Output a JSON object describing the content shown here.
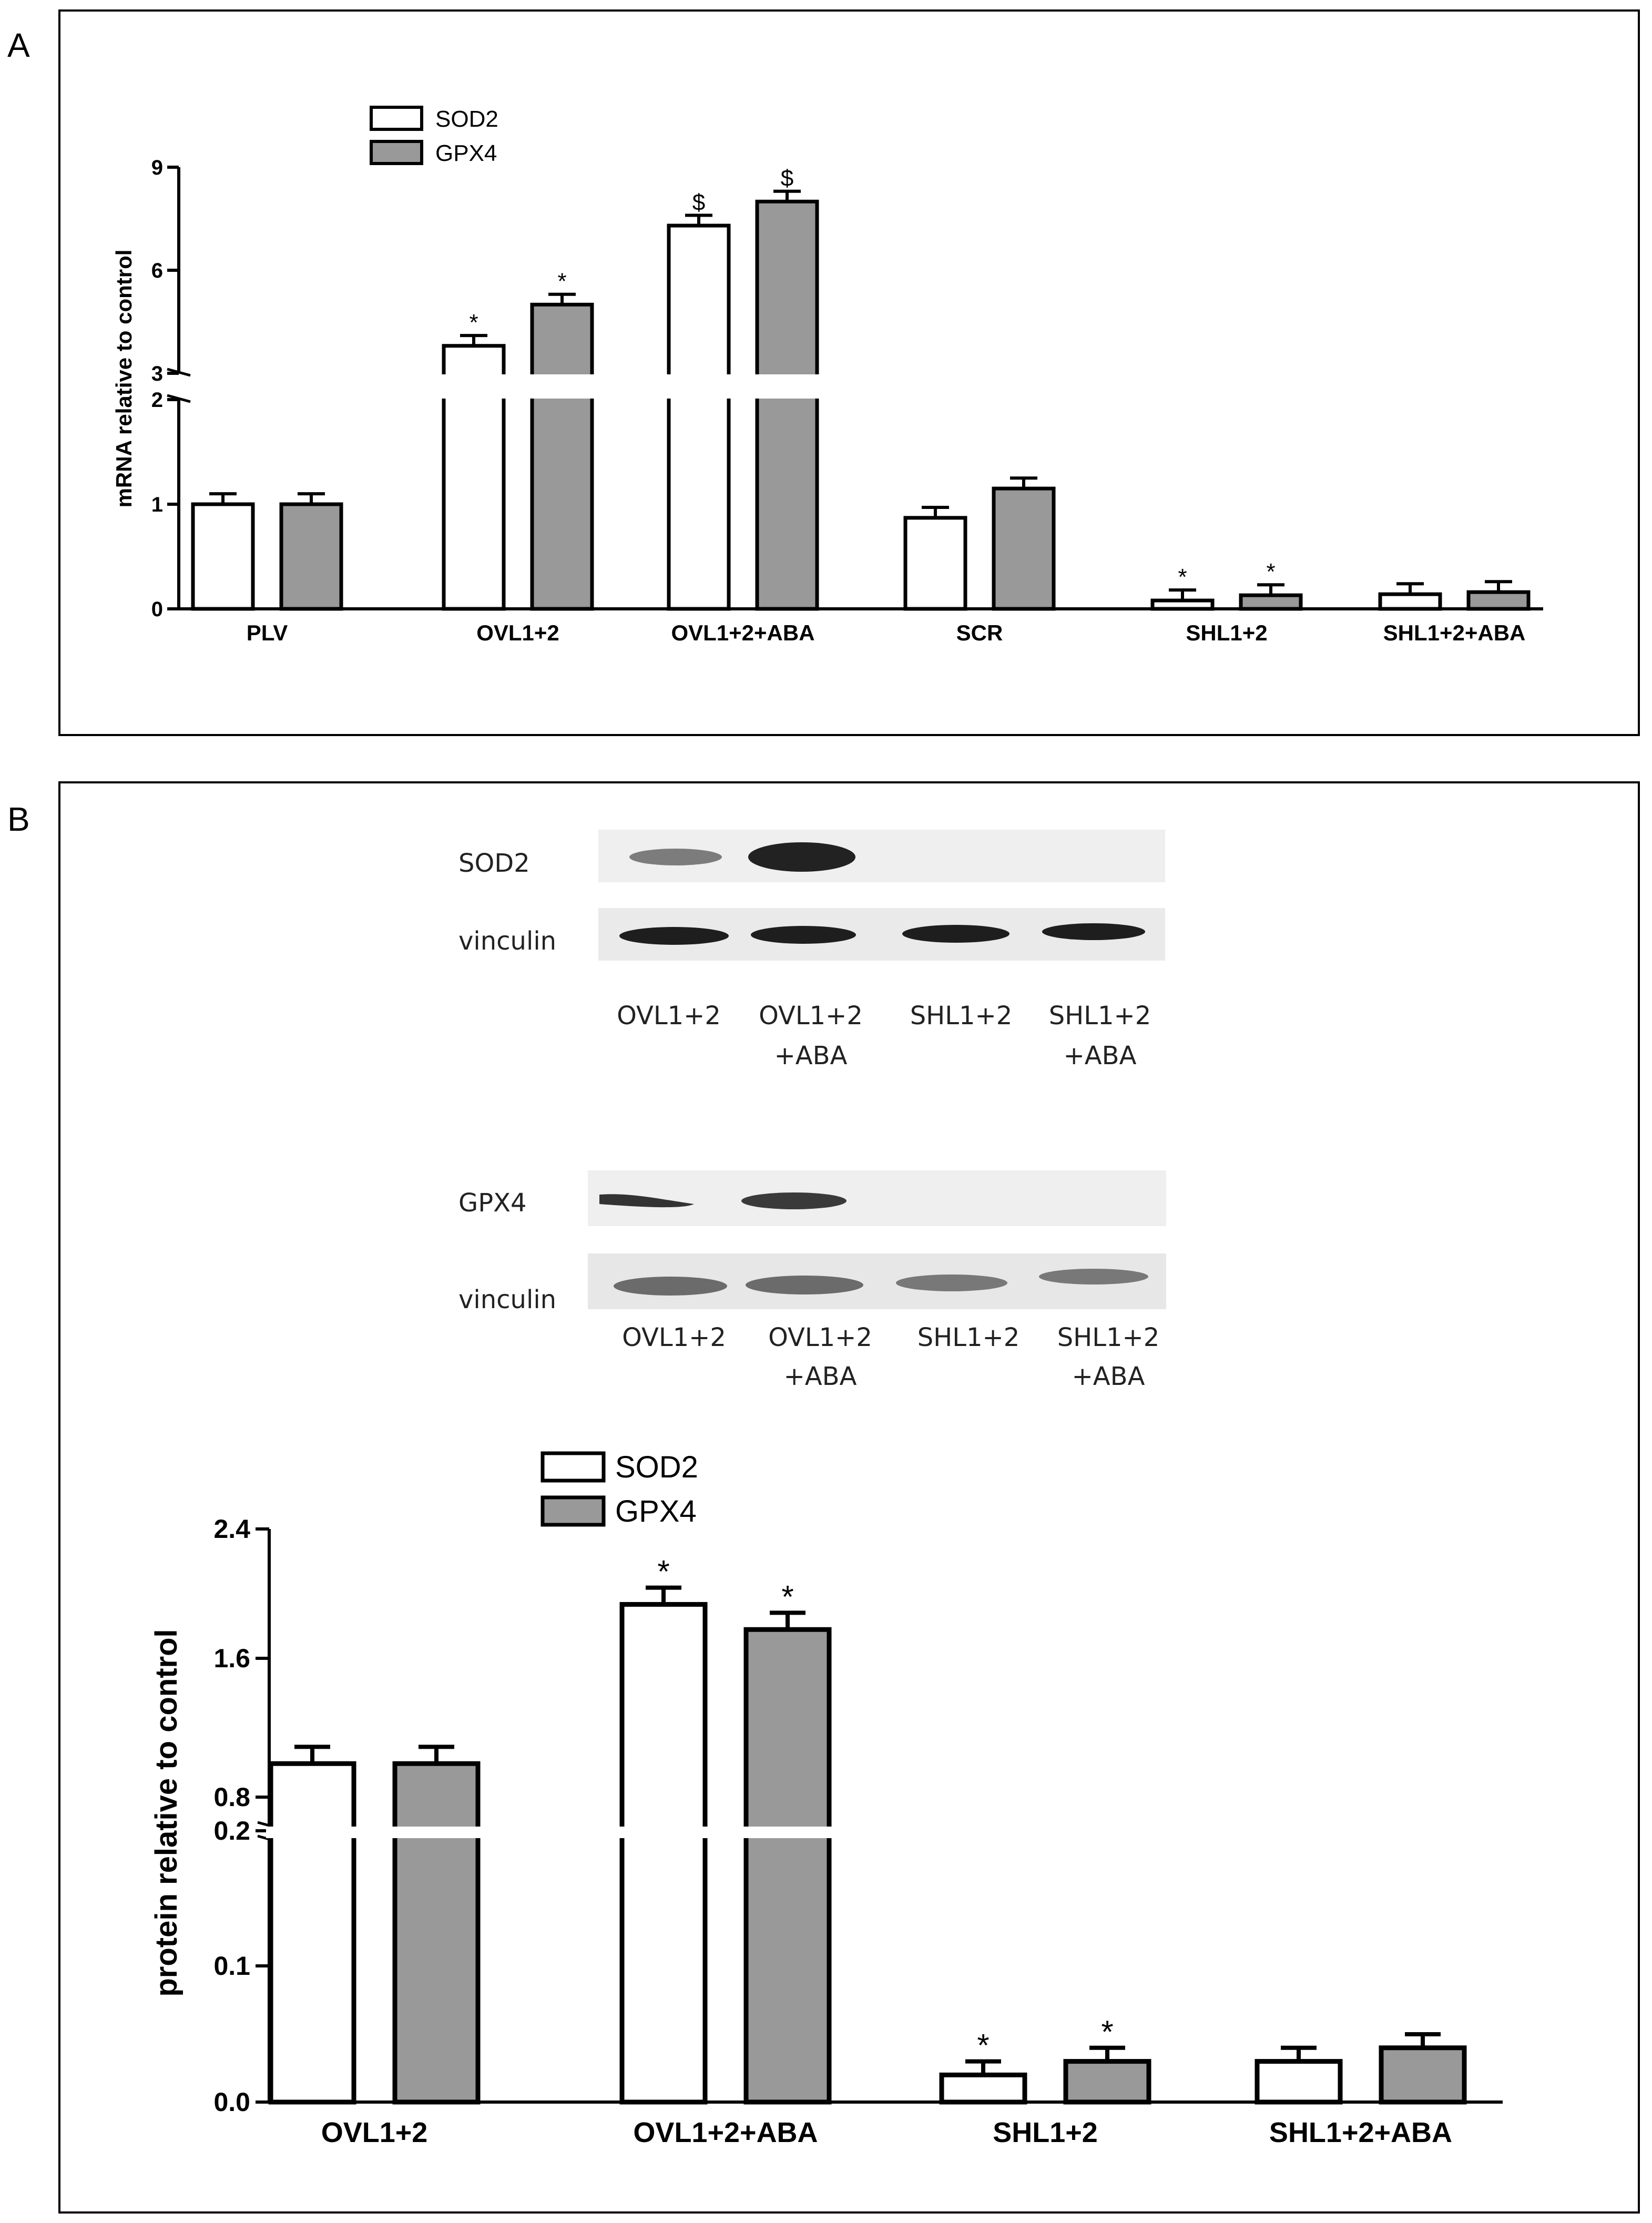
{
  "panels": {
    "a": "A",
    "b": "B"
  },
  "colors": {
    "sod2_fill": "#ffffff",
    "gpx4_fill": "#999999",
    "stroke": "#000000",
    "band_dark": "#1e1e1e",
    "blot_bg": "#eeeeee"
  },
  "blots": {
    "sod2": {
      "target_label": "SOD2",
      "loading_label": "vinculin",
      "lanes": [
        {
          "line1": "OVL1+2",
          "line2": ""
        },
        {
          "line1": "OVL1+2",
          "line2": "+ABA"
        },
        {
          "line1": "SHL1+2",
          "line2": ""
        },
        {
          "line1": "SHL1+2",
          "line2": "+ABA"
        }
      ]
    },
    "gpx4": {
      "target_label": "GPX4",
      "loading_label": "vinculin",
      "lanes": [
        {
          "line1": "OVL1+2",
          "line2": ""
        },
        {
          "line1": "OVL1+2",
          "line2": "+ABA"
        },
        {
          "line1": "SHL1+2",
          "line2": ""
        },
        {
          "line1": "SHL1+2",
          "line2": "+ABA"
        }
      ]
    }
  },
  "chart_data": [
    {
      "type": "bar",
      "panel": "A",
      "ylabel": "mRNA relative to control",
      "categories": [
        "PLV",
        "OVL1+2",
        "OVL1+2+ABA",
        "SCR",
        "SHL1+2",
        "SHL1+2+ABA"
      ],
      "series": [
        {
          "name": "SOD2",
          "values": [
            1.0,
            3.8,
            7.3,
            0.87,
            0.08,
            0.14
          ],
          "errors": [
            0.1,
            0.3,
            0.3,
            0.1,
            0.1,
            0.1
          ],
          "marks": [
            "",
            "*",
            "$",
            "",
            "*",
            ""
          ]
        },
        {
          "name": "GPX4",
          "values": [
            1.0,
            5.0,
            8.0,
            1.15,
            0.13,
            0.16
          ],
          "errors": [
            0.1,
            0.3,
            0.3,
            0.1,
            0.1,
            0.1
          ],
          "marks": [
            "",
            "*",
            "$",
            "",
            "*",
            ""
          ]
        }
      ],
      "y_axis_break": true,
      "y_lower_segment": {
        "range": [
          0,
          2
        ],
        "ticks": [
          "0",
          "1",
          "2"
        ]
      },
      "y_upper_segment": {
        "range": [
          3,
          9
        ],
        "ticks": [
          "3",
          "6",
          "9"
        ]
      },
      "legend": "top-left"
    },
    {
      "type": "bar",
      "panel": "B",
      "ylabel": "protein relative to control",
      "categories": [
        "OVL1+2",
        "OVL1+2+ABA",
        "SHL1+2",
        "SHL1+2+ABA"
      ],
      "series": [
        {
          "name": "SOD2",
          "values": [
            1.0,
            1.95,
            0.02,
            0.03
          ],
          "errors": [
            0.1,
            0.1,
            0.01,
            0.01
          ],
          "marks": [
            "",
            "*",
            "*",
            ""
          ]
        },
        {
          "name": "GPX4",
          "values": [
            1.0,
            1.8,
            0.03,
            0.04
          ],
          "errors": [
            0.1,
            0.1,
            0.01,
            0.01
          ],
          "marks": [
            "",
            "*",
            "*",
            ""
          ]
        }
      ],
      "y_axis_break": true,
      "y_lower_segment": {
        "range": [
          0,
          0.2
        ],
        "ticks": [
          "0.0",
          "0.1",
          "0.2"
        ]
      },
      "y_upper_segment": {
        "range": [
          0.8,
          2.4
        ],
        "ticks": [
          "0.8",
          "1.6",
          "2.4"
        ]
      },
      "legend": "top-left"
    }
  ]
}
